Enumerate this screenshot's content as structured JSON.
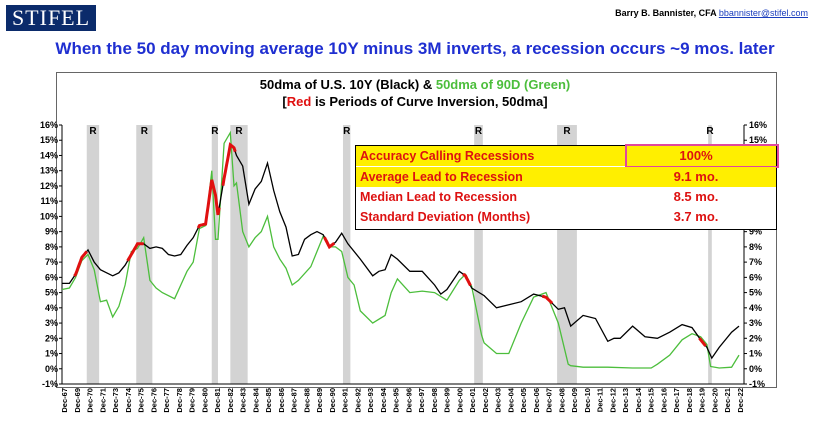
{
  "header": {
    "logo": "STIFEL",
    "author": "Barry B. Bannister, CFA",
    "email": "bbannister@stifel.com",
    "headline": "When the 50 day moving average 10Y minus 3M inverts, a recession occurs ~9 mos. later"
  },
  "chart_titles": {
    "line1_black": "50dma of U.S. 10Y (Black) &",
    "line1_green": "50dma of 90D (Green)",
    "line2_open": "[",
    "line2_red": "Red",
    "line2_rest": "is Periods of Curve Inversion, 50dma]"
  },
  "stats_box": {
    "rows": [
      {
        "label": "Accuracy Calling Recessions",
        "value": "100%"
      },
      {
        "label": "Average Lead to Recession",
        "value": "9.1 mo."
      },
      {
        "label": "Median Lead to Recession",
        "value": "8.5 mo."
      },
      {
        "label": "Standard Deviation (Months)",
        "value": "3.7 mo."
      }
    ]
  },
  "colors": {
    "ten_year": "#000000",
    "ninety_day": "#4cbe3c",
    "inversion": "#e01010",
    "recession": "#d3d3d3",
    "headline": "#1f2fd1"
  },
  "chart_data": {
    "type": "line",
    "xlim": [
      1967.9,
      2023.0
    ],
    "ylim": [
      -1,
      16
    ],
    "y_ticks": [
      "-1%",
      "0%",
      "1%",
      "2%",
      "3%",
      "4%",
      "5%",
      "6%",
      "7%",
      "8%",
      "9%",
      "10%",
      "11%",
      "12%",
      "13%",
      "14%",
      "15%",
      "16%"
    ],
    "x_ticks": [
      "Dec-67",
      "Dec-69",
      "Dec-70",
      "Dec-71",
      "Dec-73",
      "Dec-74",
      "Dec-75",
      "Dec-76",
      "Dec-77",
      "Dec-78",
      "Dec-79",
      "Dec-80",
      "Dec-81",
      "Dec-82",
      "Dec-83",
      "Dec-84",
      "Dec-85",
      "Dec-86",
      "Dec-87",
      "Dec-88",
      "Dec-89",
      "Dec-90",
      "Dec-91",
      "Dec-92",
      "Dec-93",
      "Dec-94",
      "Dec-95",
      "Dec-96",
      "Dec-97",
      "Dec-98",
      "Dec-99",
      "Dec-00",
      "Dec-01",
      "Dec-02",
      "Dec-03",
      "Dec-04",
      "Dec-05",
      "Dec-06",
      "Dec-07",
      "Dec-08",
      "Dec-09",
      "Dec-10",
      "Dec-11",
      "Dec-12",
      "Dec-13",
      "Dec-14",
      "Dec-15",
      "Dec-16",
      "Dec-17",
      "Dec-18",
      "Dec-19",
      "Dec-20",
      "Dec-21",
      "Dec-22"
    ],
    "recessions": [
      [
        1969.9,
        1970.9
      ],
      [
        1973.9,
        1975.2
      ],
      [
        1980.0,
        1980.5
      ],
      [
        1981.5,
        1982.9
      ],
      [
        1990.6,
        1991.2
      ],
      [
        2001.2,
        2001.9
      ],
      [
        2007.9,
        2009.5
      ],
      [
        2020.1,
        2020.4
      ]
    ],
    "recession_label": "R",
    "series": [
      {
        "name": "50dma of U.S. 10Y",
        "x": [
          1967.9,
          1968.5,
          1969.0,
          1969.5,
          1970.0,
          1970.5,
          1971.0,
          1971.5,
          1972.0,
          1972.5,
          1973.0,
          1973.5,
          1974.0,
          1974.5,
          1975.0,
          1975.5,
          1976.0,
          1976.5,
          1977.0,
          1977.5,
          1978.0,
          1978.5,
          1979.0,
          1979.5,
          1980.0,
          1980.3,
          1980.5,
          1981.0,
          1981.5,
          1981.8,
          1982.0,
          1982.5,
          1983.0,
          1983.5,
          1984.0,
          1984.5,
          1985.0,
          1985.5,
          1986.0,
          1986.5,
          1987.0,
          1987.5,
          1988.0,
          1988.5,
          1989.0,
          1989.5,
          1990.0,
          1990.5,
          1991.0,
          1992.0,
          1993.0,
          1993.5,
          1994.0,
          1994.5,
          1995.0,
          1996.0,
          1997.0,
          1998.0,
          1998.5,
          1999.0,
          2000.0,
          2000.5,
          2001.0,
          2002.0,
          2003.0,
          2004.0,
          2005.0,
          2006.0,
          2007.0,
          2008.0,
          2008.5,
          2009.0,
          2010.0,
          2011.0,
          2012.0,
          2012.5,
          2013.0,
          2014.0,
          2015.0,
          2016.0,
          2017.0,
          2018.0,
          2018.8,
          2019.5,
          2020.0,
          2020.4,
          2021.0,
          2022.0,
          2022.6
        ],
        "values": [
          5.6,
          5.6,
          6.2,
          7.3,
          7.8,
          7.0,
          6.5,
          6.3,
          6.1,
          6.3,
          6.8,
          7.5,
          8.2,
          8.2,
          7.9,
          8.0,
          7.9,
          7.5,
          7.4,
          7.5,
          8.1,
          8.6,
          9.4,
          9.5,
          12.4,
          11.4,
          10.1,
          12.5,
          14.7,
          14.5,
          14.0,
          13.3,
          10.8,
          11.8,
          12.3,
          13.5,
          11.7,
          10.3,
          9.3,
          7.4,
          7.5,
          8.5,
          8.8,
          9.0,
          8.8,
          8.0,
          8.3,
          8.9,
          8.2,
          7.2,
          6.1,
          6.4,
          6.5,
          7.5,
          7.2,
          6.4,
          6.4,
          5.5,
          4.9,
          5.2,
          6.4,
          6.1,
          5.3,
          4.8,
          4.0,
          4.2,
          4.4,
          4.9,
          4.7,
          3.9,
          4.0,
          2.8,
          3.5,
          3.3,
          1.8,
          2.0,
          2.0,
          2.8,
          2.1,
          2.0,
          2.4,
          2.9,
          2.7,
          1.9,
          1.4,
          0.7,
          1.4,
          2.4,
          2.8
        ],
        "color": "#000000"
      },
      {
        "name": "50dma of 90D",
        "x": [
          1967.9,
          1968.5,
          1969.0,
          1969.5,
          1970.0,
          1970.5,
          1971.0,
          1971.5,
          1972.0,
          1972.5,
          1973.0,
          1973.5,
          1974.0,
          1974.5,
          1975.0,
          1975.5,
          1976.0,
          1977.0,
          1977.5,
          1978.0,
          1978.5,
          1979.0,
          1979.5,
          1980.0,
          1980.3,
          1980.5,
          1981.0,
          1981.5,
          1981.8,
          1982.0,
          1982.5,
          1983.0,
          1983.5,
          1984.0,
          1984.5,
          1985.0,
          1985.5,
          1986.0,
          1986.5,
          1987.0,
          1988.0,
          1989.0,
          1989.5,
          1990.0,
          1990.5,
          1991.0,
          1991.5,
          1992.0,
          1993.0,
          1994.0,
          1994.5,
          1995.0,
          1996.0,
          1997.0,
          1998.0,
          1999.0,
          2000.0,
          2000.5,
          2001.0,
          2001.8,
          2002.0,
          2003.0,
          2004.0,
          2005.0,
          2006.0,
          2007.0,
          2008.0,
          2008.8,
          2009.0,
          2010.0,
          2012.0,
          2014.0,
          2015.5,
          2016.0,
          2017.0,
          2018.0,
          2018.8,
          2019.5,
          2020.0,
          2020.3,
          2021.0,
          2022.0,
          2022.6
        ],
        "values": [
          5.2,
          5.3,
          6.0,
          7.1,
          7.5,
          6.5,
          4.4,
          4.5,
          3.4,
          4.1,
          5.5,
          7.7,
          7.9,
          8.6,
          5.8,
          5.3,
          5.0,
          4.6,
          5.5,
          6.4,
          7.0,
          9.2,
          9.4,
          13.0,
          8.5,
          8.5,
          14.8,
          15.5,
          12.0,
          12.2,
          9.0,
          8.0,
          8.6,
          9.0,
          10.0,
          8.0,
          7.2,
          6.6,
          5.5,
          5.8,
          6.7,
          8.7,
          8.0,
          8.0,
          7.7,
          6.0,
          5.5,
          3.8,
          3.0,
          3.5,
          5.0,
          5.9,
          5.0,
          5.1,
          5.0,
          4.5,
          5.8,
          6.2,
          5.4,
          2.2,
          1.7,
          1.0,
          1.0,
          3.0,
          4.7,
          5.0,
          3.0,
          0.3,
          0.2,
          0.1,
          0.1,
          0.05,
          0.05,
          0.3,
          0.9,
          1.9,
          2.3,
          2.1,
          1.6,
          0.15,
          0.05,
          0.1,
          0.9
        ],
        "color": "#4cbe3c"
      }
    ],
    "inversion_periods": [
      [
        1968.9,
        1969.9
      ],
      [
        1973.2,
        1974.5
      ],
      [
        1978.9,
        1980.6
      ],
      [
        1980.9,
        1981.9
      ],
      [
        1989.1,
        1989.9
      ],
      [
        2000.3,
        2000.9
      ],
      [
        2006.7,
        2007.5
      ],
      [
        2019.4,
        2019.9
      ]
    ]
  }
}
